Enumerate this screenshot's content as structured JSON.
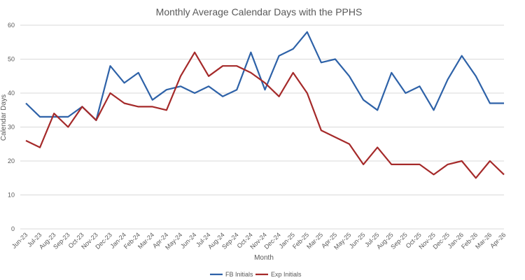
{
  "chart_data": {
    "type": "line",
    "title": "Monthly Average Calendar Days with the PPHS",
    "xlabel": "Month",
    "ylabel": "Calendar Days",
    "ylim": [
      0,
      60
    ],
    "yticks": [
      0,
      10,
      20,
      30,
      40,
      50,
      60
    ],
    "grid": true,
    "legend_position": "bottom",
    "categories": [
      "Jun-23",
      "Jul-23",
      "Aug-23",
      "Sep-23",
      "Oct-23",
      "Nov-23",
      "Dec-23",
      "Jan-24",
      "Feb-24",
      "Mar-24",
      "Apr-24",
      "May-24",
      "Jun-24",
      "Jul-24",
      "Aug-24",
      "Sep-24",
      "Oct-24",
      "Nov-24",
      "Dec-24",
      "Jan-25",
      "Feb-25",
      "Mar-25",
      "Apr-25",
      "May-25",
      "Jun-25",
      "Jul-25",
      "Aug-25",
      "Sep-25",
      "Oct-25",
      "Nov-25",
      "Dec-25",
      "Jan-26",
      "Feb-26",
      "Mar-26",
      "Apr-26"
    ],
    "series": [
      {
        "name": "FB Initials",
        "color": "#2e62a8",
        "values": [
          37,
          33,
          33,
          33,
          36,
          32,
          48,
          43,
          46,
          38,
          41,
          42,
          40,
          42,
          39,
          41,
          52,
          41,
          51,
          53,
          58,
          49,
          50,
          45,
          38,
          35,
          46,
          40,
          42,
          35,
          44,
          51,
          45,
          37,
          37
        ]
      },
      {
        "name": "Exp Initials",
        "color": "#a52a2a",
        "values": [
          26,
          24,
          34,
          30,
          36,
          32,
          40,
          37,
          36,
          36,
          35,
          45,
          52,
          45,
          48,
          48,
          46,
          43,
          39,
          46,
          40,
          29,
          27,
          25,
          19,
          24,
          19,
          19,
          19,
          16,
          19,
          20,
          15,
          20,
          16
        ]
      }
    ]
  }
}
